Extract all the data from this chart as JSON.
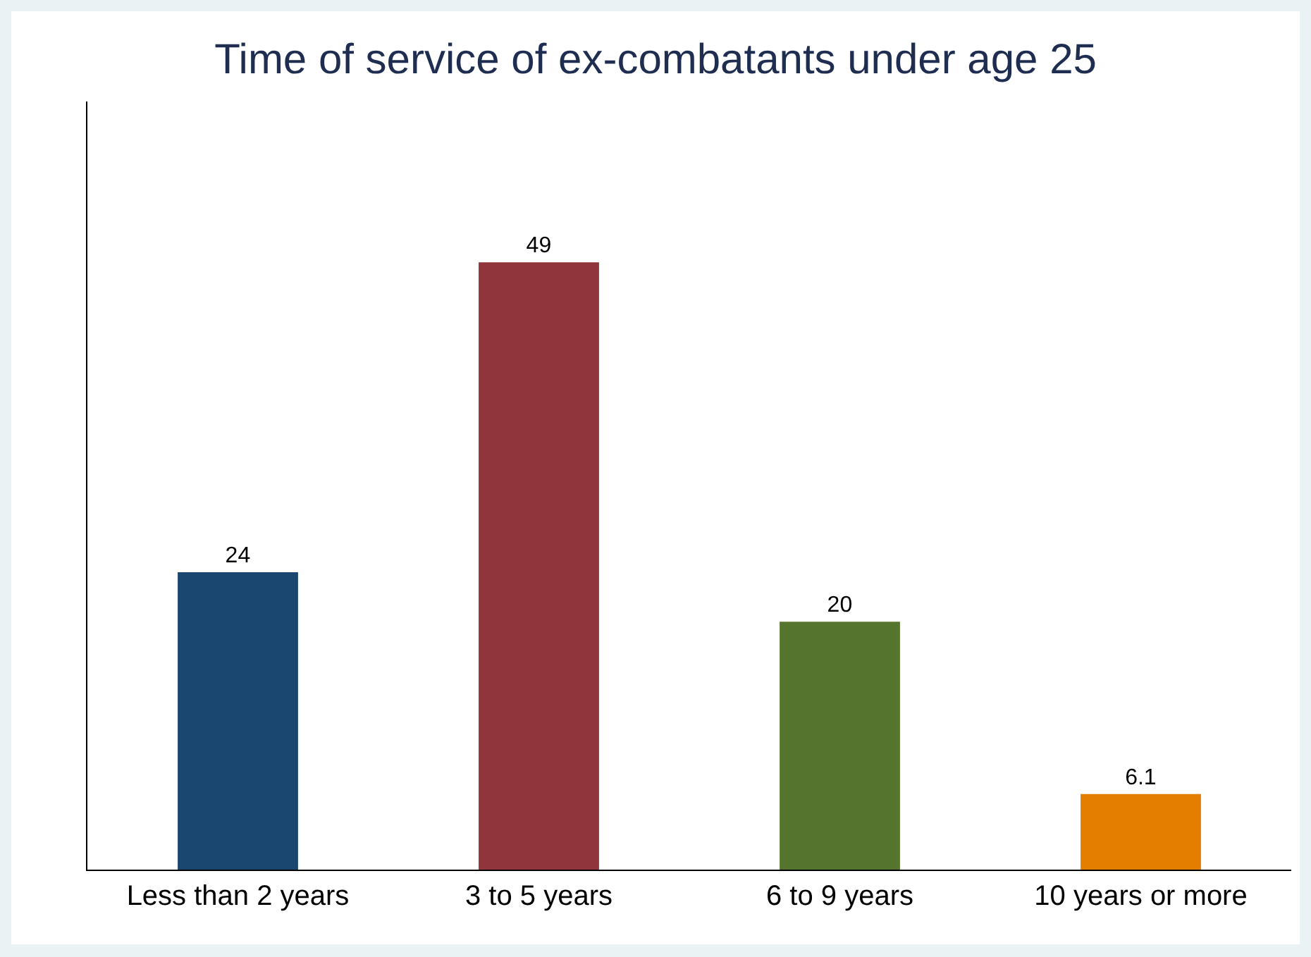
{
  "chart_data": {
    "type": "bar",
    "title": "Time of service of ex-combatants under age 25",
    "categories": [
      "Less than 2 years",
      "3 to 5 years",
      "6 to 9 years",
      "10 years or more"
    ],
    "values": [
      24,
      49,
      20,
      6.1
    ],
    "colors": [
      "#1a476f",
      "#90353b",
      "#55752f",
      "#e37e00"
    ],
    "data_labels": true,
    "grid": false,
    "tick_labels": "x"
  }
}
